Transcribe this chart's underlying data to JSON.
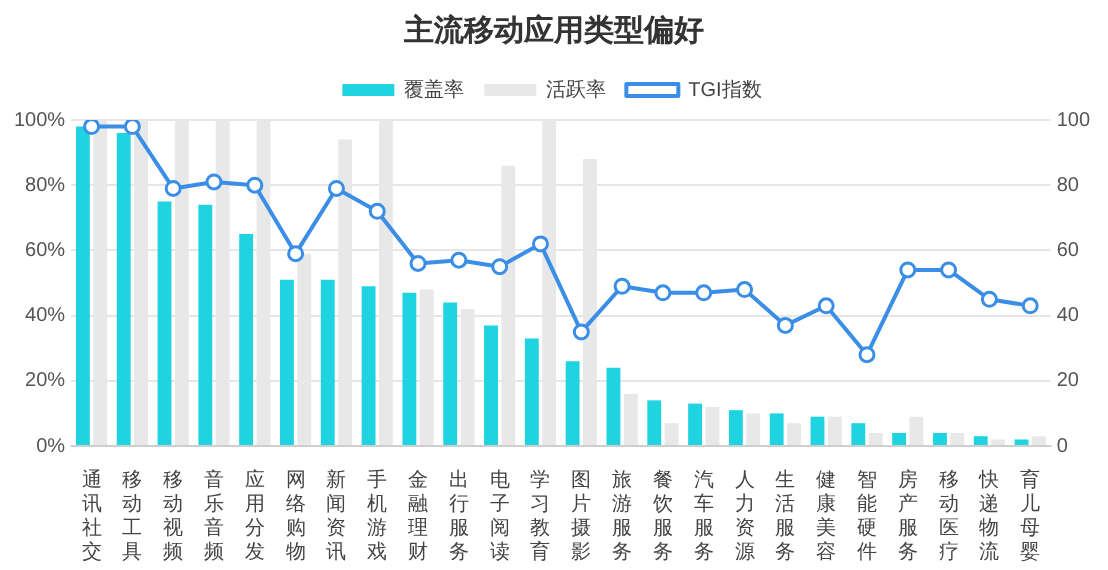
{
  "chart_data": {
    "type": "bar",
    "title": "主流移动应用类型偏好",
    "categories": [
      "通讯社交",
      "移动工具",
      "移动视频",
      "音乐音频",
      "应用分发",
      "网络购物",
      "新闻资讯",
      "手机游戏",
      "金融理财",
      "出行服务",
      "电子阅读",
      "学习教育",
      "图片摄影",
      "旅游服务",
      "餐饮服务",
      "汽车服务",
      "人力资源",
      "生活服务",
      "健康美容",
      "智能硬件",
      "房产服务",
      "移动医疗",
      "快递物流",
      "育儿母婴"
    ],
    "series": [
      {
        "name": "覆盖率",
        "color": "#1fd3e0",
        "values": [
          98,
          96,
          75,
          74,
          65,
          51,
          51,
          49,
          47,
          44,
          37,
          33,
          26,
          24,
          14,
          13,
          11,
          10,
          9,
          7,
          4,
          4,
          3,
          2
        ]
      },
      {
        "name": "活跃率",
        "color": "#e8e8e8",
        "values": [
          100,
          100,
          100,
          100,
          100,
          59,
          94,
          100,
          48,
          42,
          86,
          100,
          88,
          16,
          7,
          12,
          10,
          7,
          9,
          4,
          9,
          4,
          2,
          3
        ]
      },
      {
        "name": "TGI指数",
        "type": "line",
        "axis": "y2",
        "color": "#3a8ee6",
        "values": [
          98,
          98,
          79,
          81,
          80,
          59,
          79,
          72,
          56,
          57,
          55,
          62,
          35,
          49,
          47,
          47,
          48,
          37,
          43,
          28,
          54,
          54,
          45,
          43
        ]
      }
    ],
    "ylim": [
      0,
      100
    ],
    "yticks": [
      {
        "value": 0,
        "label": "0%"
      },
      {
        "value": 20,
        "label": "20%"
      },
      {
        "value": 40,
        "label": "40%"
      },
      {
        "value": 60,
        "label": "60%"
      },
      {
        "value": 80,
        "label": "80%"
      },
      {
        "value": 100,
        "label": "100%"
      }
    ],
    "y2lim": [
      0,
      100
    ],
    "y2ticks": [
      0,
      20,
      40,
      60,
      80,
      100
    ],
    "grid": "y",
    "legend": "top",
    "marker": "circle",
    "line_style": "solid"
  }
}
